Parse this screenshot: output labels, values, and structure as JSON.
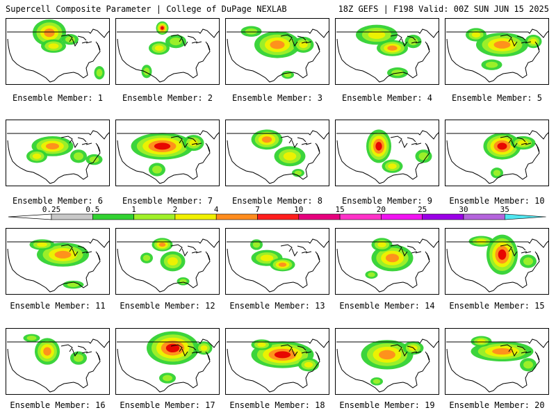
{
  "header": {
    "title_left": "Supercell Composite Parameter | College of DuPage NEXLAB",
    "title_right": "18Z GEFS | F198 Valid: 00Z SUN JUN 15 2025"
  },
  "panel_caption_prefix": "Ensemble Member:",
  "panels": [
    {
      "member": 1,
      "caption": "Ensemble Member: 1",
      "blobs": [
        [
          0.42,
          0.22,
          0.16,
          0.2,
          3
        ],
        [
          0.46,
          0.42,
          0.12,
          0.1,
          2
        ],
        [
          0.62,
          0.32,
          0.08,
          0.08,
          1
        ],
        [
          0.9,
          0.82,
          0.05,
          0.1,
          1
        ]
      ]
    },
    {
      "member": 2,
      "caption": "Ensemble Member: 2",
      "blobs": [
        [
          0.45,
          0.15,
          0.06,
          0.1,
          4
        ],
        [
          0.42,
          0.45,
          0.1,
          0.1,
          2
        ],
        [
          0.58,
          0.35,
          0.1,
          0.1,
          1
        ],
        [
          0.3,
          0.8,
          0.05,
          0.1,
          1
        ]
      ]
    },
    {
      "member": 3,
      "caption": "Ensemble Member: 3",
      "blobs": [
        [
          0.5,
          0.4,
          0.22,
          0.2,
          3
        ],
        [
          0.25,
          0.2,
          0.1,
          0.08,
          1
        ],
        [
          0.75,
          0.4,
          0.1,
          0.12,
          2
        ],
        [
          0.6,
          0.85,
          0.06,
          0.06,
          1
        ]
      ]
    },
    {
      "member": 4,
      "caption": "Ensemble Member: 4",
      "blobs": [
        [
          0.4,
          0.25,
          0.2,
          0.15,
          2
        ],
        [
          0.55,
          0.45,
          0.15,
          0.12,
          3
        ],
        [
          0.75,
          0.35,
          0.08,
          0.1,
          1
        ],
        [
          0.6,
          0.82,
          0.1,
          0.08,
          1
        ]
      ]
    },
    {
      "member": 5,
      "caption": "Ensemble Member: 5",
      "blobs": [
        [
          0.3,
          0.25,
          0.1,
          0.1,
          2
        ],
        [
          0.55,
          0.4,
          0.25,
          0.18,
          3
        ],
        [
          0.85,
          0.35,
          0.08,
          0.1,
          2
        ],
        [
          0.45,
          0.7,
          0.1,
          0.08,
          1
        ]
      ]
    },
    {
      "member": 6,
      "caption": "Ensemble Member: 6",
      "blobs": [
        [
          0.45,
          0.4,
          0.2,
          0.15,
          3
        ],
        [
          0.3,
          0.55,
          0.1,
          0.1,
          2
        ],
        [
          0.85,
          0.6,
          0.08,
          0.08,
          1
        ],
        [
          0.7,
          0.55,
          0.08,
          0.1,
          1
        ]
      ]
    },
    {
      "member": 7,
      "caption": "Ensemble Member: 7",
      "blobs": [
        [
          0.45,
          0.4,
          0.3,
          0.2,
          4
        ],
        [
          0.75,
          0.35,
          0.1,
          0.12,
          2
        ],
        [
          0.4,
          0.75,
          0.08,
          0.1,
          1
        ]
      ]
    },
    {
      "member": 8,
      "caption": "Ensemble Member: 8",
      "blobs": [
        [
          0.4,
          0.3,
          0.15,
          0.15,
          3
        ],
        [
          0.62,
          0.55,
          0.15,
          0.15,
          2
        ],
        [
          0.7,
          0.8,
          0.06,
          0.06,
          1
        ]
      ]
    },
    {
      "member": 9,
      "caption": "Ensemble Member: 9",
      "blobs": [
        [
          0.42,
          0.4,
          0.12,
          0.25,
          4
        ],
        [
          0.55,
          0.7,
          0.1,
          0.1,
          2
        ],
        [
          0.85,
          0.55,
          0.08,
          0.1,
          1
        ]
      ]
    },
    {
      "member": 10,
      "caption": "Ensemble Member: 10",
      "blobs": [
        [
          0.55,
          0.4,
          0.18,
          0.2,
          4
        ],
        [
          0.75,
          0.35,
          0.12,
          0.1,
          2
        ],
        [
          0.5,
          0.8,
          0.06,
          0.08,
          1
        ]
      ]
    },
    {
      "member": 11,
      "caption": "Ensemble Member: 11",
      "blobs": [
        [
          0.55,
          0.4,
          0.25,
          0.18,
          3
        ],
        [
          0.35,
          0.25,
          0.12,
          0.08,
          2
        ],
        [
          0.65,
          0.85,
          0.1,
          0.06,
          1
        ]
      ]
    },
    {
      "member": 12,
      "caption": "Ensemble Member: 12",
      "blobs": [
        [
          0.45,
          0.25,
          0.1,
          0.1,
          3
        ],
        [
          0.55,
          0.5,
          0.12,
          0.15,
          2
        ],
        [
          0.3,
          0.45,
          0.06,
          0.08,
          1
        ],
        [
          0.65,
          0.8,
          0.06,
          0.06,
          1
        ]
      ]
    },
    {
      "member": 13,
      "caption": "Ensemble Member: 13",
      "blobs": [
        [
          0.4,
          0.45,
          0.15,
          0.12,
          2
        ],
        [
          0.55,
          0.55,
          0.12,
          0.1,
          3
        ],
        [
          0.3,
          0.25,
          0.06,
          0.08,
          1
        ]
      ]
    },
    {
      "member": 14,
      "caption": "Ensemble Member: 14",
      "blobs": [
        [
          0.55,
          0.45,
          0.2,
          0.2,
          3
        ],
        [
          0.45,
          0.25,
          0.1,
          0.1,
          2
        ],
        [
          0.35,
          0.7,
          0.06,
          0.06,
          1
        ]
      ]
    },
    {
      "member": 15,
      "caption": "Ensemble Member: 15",
      "blobs": [
        [
          0.55,
          0.4,
          0.15,
          0.3,
          4
        ],
        [
          0.35,
          0.2,
          0.12,
          0.08,
          2
        ],
        [
          0.8,
          0.5,
          0.08,
          0.1,
          1
        ]
      ]
    },
    {
      "member": 16,
      "caption": "Ensemble Member: 16",
      "blobs": [
        [
          0.4,
          0.35,
          0.12,
          0.2,
          3
        ],
        [
          0.25,
          0.15,
          0.08,
          0.06,
          1
        ],
        [
          0.7,
          0.45,
          0.08,
          0.1,
          1
        ]
      ]
    },
    {
      "member": 17,
      "caption": "Ensemble Member: 17",
      "blobs": [
        [
          0.55,
          0.3,
          0.25,
          0.25,
          4
        ],
        [
          0.85,
          0.3,
          0.08,
          0.1,
          2
        ],
        [
          0.5,
          0.75,
          0.08,
          0.08,
          1
        ]
      ]
    },
    {
      "member": 18,
      "caption": "Ensemble Member: 18",
      "blobs": [
        [
          0.55,
          0.4,
          0.3,
          0.2,
          4
        ],
        [
          0.35,
          0.25,
          0.1,
          0.08,
          2
        ],
        [
          0.8,
          0.55,
          0.1,
          0.1,
          2
        ]
      ]
    },
    {
      "member": 19,
      "caption": "Ensemble Member: 19",
      "blobs": [
        [
          0.5,
          0.4,
          0.25,
          0.22,
          3
        ],
        [
          0.75,
          0.3,
          0.1,
          0.1,
          2
        ],
        [
          0.4,
          0.8,
          0.06,
          0.06,
          1
        ]
      ]
    },
    {
      "member": 20,
      "caption": "Ensemble Member: 20",
      "blobs": [
        [
          0.55,
          0.35,
          0.3,
          0.15,
          3
        ],
        [
          0.35,
          0.2,
          0.1,
          0.08,
          2
        ],
        [
          0.8,
          0.55,
          0.08,
          0.1,
          1
        ]
      ]
    }
  ],
  "colorbar": {
    "ticks": [
      "0.25",
      "0.5",
      "1",
      "2",
      "4",
      "7",
      "10",
      "15",
      "20",
      "25",
      "30",
      "35"
    ],
    "colors": [
      "#c8c8c8",
      "#32d232",
      "#a0f028",
      "#f0f000",
      "#ff8c1e",
      "#ff1e1e",
      "#e6007d",
      "#ff32c8",
      "#f014f0",
      "#9b00e6",
      "#b464dc",
      "#50e6f0"
    ],
    "intensity_colors": [
      "#c8c8c8",
      "#32d232",
      "#a0f028",
      "#f0f000",
      "#ff8c1e",
      "#e60000"
    ]
  }
}
